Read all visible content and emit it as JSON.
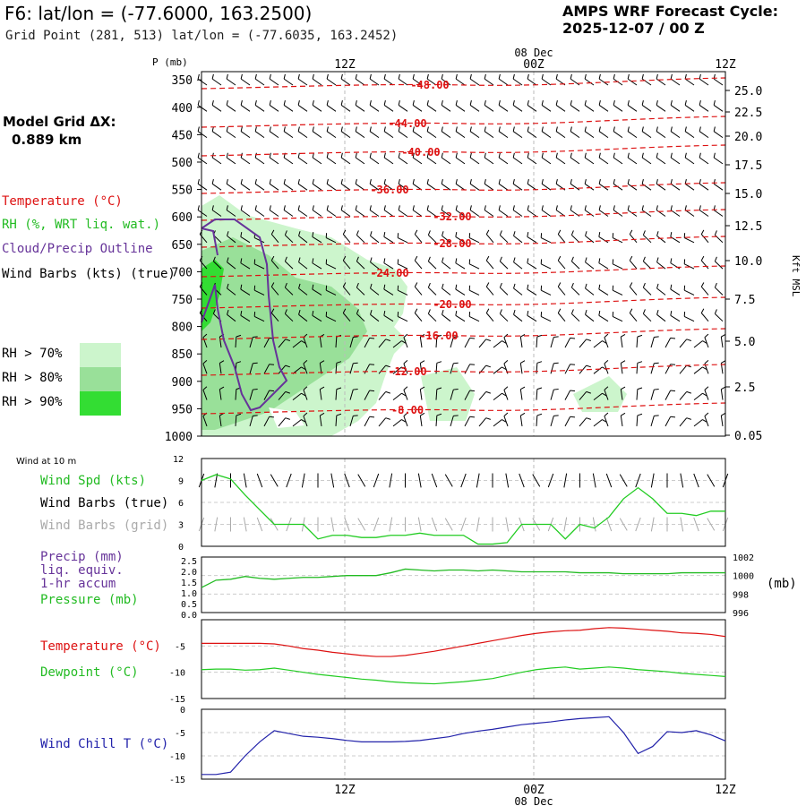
{
  "header": {
    "title": "F6:  lat/lon = (-77.6000, 163.2500)",
    "subtitle": "Grid Point (281, 513) lat/lon = (-77.6035, 163.2452)",
    "cycle_line1": "AMPS WRF Forecast Cycle:",
    "cycle_line2": "2025-12-07 / 00  Z",
    "model_grid_line1": "Model Grid ΔX:",
    "model_grid_line2": "0.889 km"
  },
  "legend": {
    "temperature": "Temperature (°C)",
    "rh": "RH (%, WRT liq. wat.)",
    "cloud": "Cloud/Precip Outline",
    "wind": "Wind Barbs (kts) (true)",
    "rh70": "RH > 70%",
    "rh80": "RH > 80%",
    "rh90": "RH > 90%"
  },
  "colors": {
    "temperature": "#dd1111",
    "rh_label": "#22bb22",
    "cloud": "#663399",
    "rh70": "#ccf5cc",
    "rh80": "#99e099",
    "rh90": "#33dd33",
    "green": "#22cc22",
    "blue": "#2222aa",
    "grey": "#aaaaaa",
    "pressure_green": "#22bb22"
  },
  "chart_data": [
    {
      "type": "cross-section",
      "title": "Vertical profile",
      "y_axis_left_label": "P (mb)",
      "y_axis_left_ticks": [
        "350",
        "400",
        "450",
        "500",
        "550",
        "600",
        "650",
        "700",
        "750",
        "800",
        "850",
        "900",
        "950",
        "1000"
      ],
      "y_axis_right_label": "Kft MSL",
      "y_axis_right_ticks": [
        "25.0",
        "22.5",
        "20.0",
        "17.5",
        "15.0",
        "12.5",
        "10.0",
        "7.5",
        "5.0",
        "2.5",
        "0.05"
      ],
      "x_ticks_top": [
        "12Z",
        "00Z",
        "12Z"
      ],
      "x_date_label": "08 Dec",
      "temperature_contours": [
        {
          "label": "-48.00",
          "value": -48
        },
        {
          "label": "-44.00",
          "value": -44
        },
        {
          "label": "-40.00",
          "value": -40
        },
        {
          "label": "-36.00",
          "value": -36
        },
        {
          "label": "-32.00",
          "value": -32
        },
        {
          "label": "-28.00",
          "value": -28
        },
        {
          "label": "-24.00",
          "value": -24
        },
        {
          "label": "-20.00",
          "value": -20
        },
        {
          "label": "-16.00",
          "value": -16
        },
        {
          "label": "-12.00",
          "value": -12
        },
        {
          "label": "-8.00",
          "value": -8
        }
      ]
    },
    {
      "type": "line",
      "title": "Wind at 10 m",
      "series_label": "Wind Spd (kts)",
      "barbs_true_label": "Wind Barbs (true)",
      "barbs_grid_label": "Wind Barbs (grid)",
      "ylim": [
        0,
        12
      ],
      "y_ticks": [
        "12",
        "9",
        "6",
        "3",
        "0"
      ],
      "x": [
        0,
        1,
        2,
        3,
        4,
        5,
        6,
        7,
        8,
        9,
        10,
        11,
        12,
        13,
        14,
        15,
        16,
        17,
        18,
        19,
        20,
        21,
        22,
        23,
        24,
        25,
        26,
        27,
        28,
        29,
        30,
        31,
        32,
        33,
        34,
        35,
        36
      ],
      "values": [
        9,
        9.8,
        9.2,
        7,
        5,
        3,
        3,
        3,
        1,
        1.5,
        1.5,
        1.2,
        1.2,
        1.5,
        1.5,
        1.8,
        1.5,
        1.5,
        1.5,
        0.3,
        0.3,
        0.5,
        3,
        3,
        3,
        1,
        3,
        2.5,
        4,
        6.5,
        8,
        6.5,
        4.5,
        4.5,
        4.2,
        4.8,
        4.8
      ]
    },
    {
      "type": "line",
      "title": "Precip / Pressure",
      "precip_label": "Precip (mm)",
      "precip_sub1": "liq. equiv.",
      "precip_sub2": "1-hr accum",
      "pressure_label": "Pressure (mb)",
      "unit_right": "(mb)",
      "y_left_ticks": [
        "2.5",
        "2.0",
        "1.5",
        "1.0",
        "0.5",
        "0.0"
      ],
      "y_right_ticks": [
        "1002",
        "1000",
        "998",
        "996"
      ],
      "precip_values": [],
      "pressure_ylim": [
        996,
        1002
      ],
      "pressure_values": [
        998.7,
        999.5,
        999.6,
        999.9,
        999.7,
        999.6,
        999.7,
        999.8,
        999.8,
        999.9,
        1000,
        1000,
        1000,
        1000.3,
        1000.7,
        1000.6,
        1000.5,
        1000.6,
        1000.6,
        1000.5,
        1000.6,
        1000.5,
        1000.4,
        1000.4,
        1000.4,
        1000.4,
        1000.3,
        1000.3,
        1000.3,
        1000.2,
        1000.2,
        1000.2,
        1000.2,
        1000.3,
        1000.3,
        1000.3,
        1000.3
      ]
    },
    {
      "type": "line",
      "title": "Temperature / Dewpoint",
      "temp_label": "Temperature (°C)",
      "dew_label": "Dewpoint (°C)",
      "ylim": [
        -15,
        0
      ],
      "y_ticks": [
        "-5",
        "-10",
        "-15"
      ],
      "x": [
        0,
        1,
        2,
        3,
        4,
        5,
        6,
        7,
        8,
        9,
        10,
        11,
        12,
        13,
        14,
        15,
        16,
        17,
        18,
        19,
        20,
        21,
        22,
        23,
        24,
        25,
        26,
        27,
        28,
        29,
        30,
        31,
        32,
        33,
        34,
        35,
        36
      ],
      "temperature": [
        -4.5,
        -4.5,
        -4.5,
        -4.5,
        -4.5,
        -4.6,
        -5,
        -5.5,
        -5.8,
        -6.2,
        -6.5,
        -6.8,
        -7,
        -7,
        -6.8,
        -6.4,
        -6,
        -5.5,
        -5,
        -4.5,
        -4,
        -3.5,
        -3,
        -2.6,
        -2.3,
        -2.1,
        -2,
        -1.7,
        -1.5,
        -1.6,
        -1.8,
        -2,
        -2.2,
        -2.5,
        -2.6,
        -2.8,
        -3.2
      ],
      "dewpoint": [
        -9.5,
        -9.4,
        -9.4,
        -9.6,
        -9.5,
        -9.2,
        -9.6,
        -10,
        -10.4,
        -10.7,
        -11,
        -11.3,
        -11.5,
        -11.8,
        -12,
        -12.1,
        -12.2,
        -12,
        -11.8,
        -11.5,
        -11.2,
        -10.6,
        -10,
        -9.5,
        -9.2,
        -9,
        -9.4,
        -9.2,
        -9,
        -9.2,
        -9.5,
        -9.7,
        -9.9,
        -10.2,
        -10.4,
        -10.6,
        -10.8
      ]
    },
    {
      "type": "line",
      "title": "Wind Chill",
      "series_label": "Wind Chill T (°C)",
      "ylim": [
        -15,
        0
      ],
      "y_ticks": [
        "0",
        "-5",
        "-10",
        "-15"
      ],
      "x_ticks_bottom": [
        "12Z",
        "00Z",
        "12Z"
      ],
      "x_date_label": "08 Dec",
      "x": [
        0,
        1,
        2,
        3,
        4,
        5,
        6,
        7,
        8,
        9,
        10,
        11,
        12,
        13,
        14,
        15,
        16,
        17,
        18,
        19,
        20,
        21,
        22,
        23,
        24,
        25,
        26,
        27,
        28,
        29,
        30,
        31,
        32,
        33,
        34,
        35,
        36
      ],
      "values": [
        -14,
        -14,
        -13.5,
        -10,
        -7,
        -4.6,
        -5.2,
        -5.8,
        -6,
        -6.3,
        -6.7,
        -7,
        -7,
        -7,
        -6.9,
        -6.7,
        -6.3,
        -5.9,
        -5.2,
        -4.7,
        -4.3,
        -3.8,
        -3.3,
        -3,
        -2.7,
        -2.3,
        -2,
        -1.8,
        -1.6,
        -5,
        -9.5,
        -8,
        -4.8,
        -5,
        -4.6,
        -5.5,
        -6.8
      ]
    }
  ]
}
